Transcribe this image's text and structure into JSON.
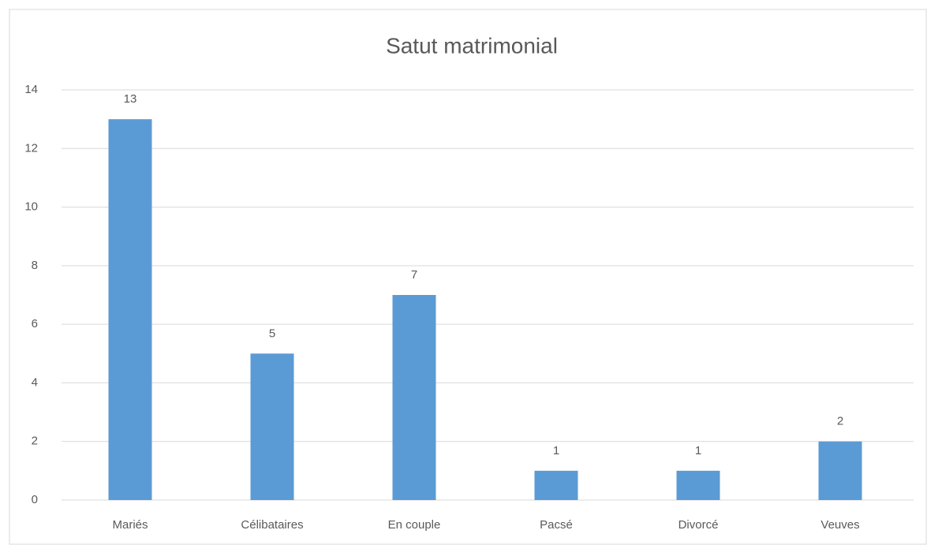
{
  "chart_data": {
    "type": "bar",
    "title": "Satut matrimonial",
    "categories": [
      "Mariés",
      "Célibataires",
      "En couple",
      "Pacsé",
      "Divorcé",
      "Veuves"
    ],
    "values": [
      13,
      5,
      7,
      1,
      1,
      2
    ],
    "color": "#5b9bd5",
    "ylim": [
      0,
      14
    ],
    "yticks": [
      0,
      2,
      4,
      6,
      8,
      10,
      12,
      14
    ],
    "grid": true
  }
}
